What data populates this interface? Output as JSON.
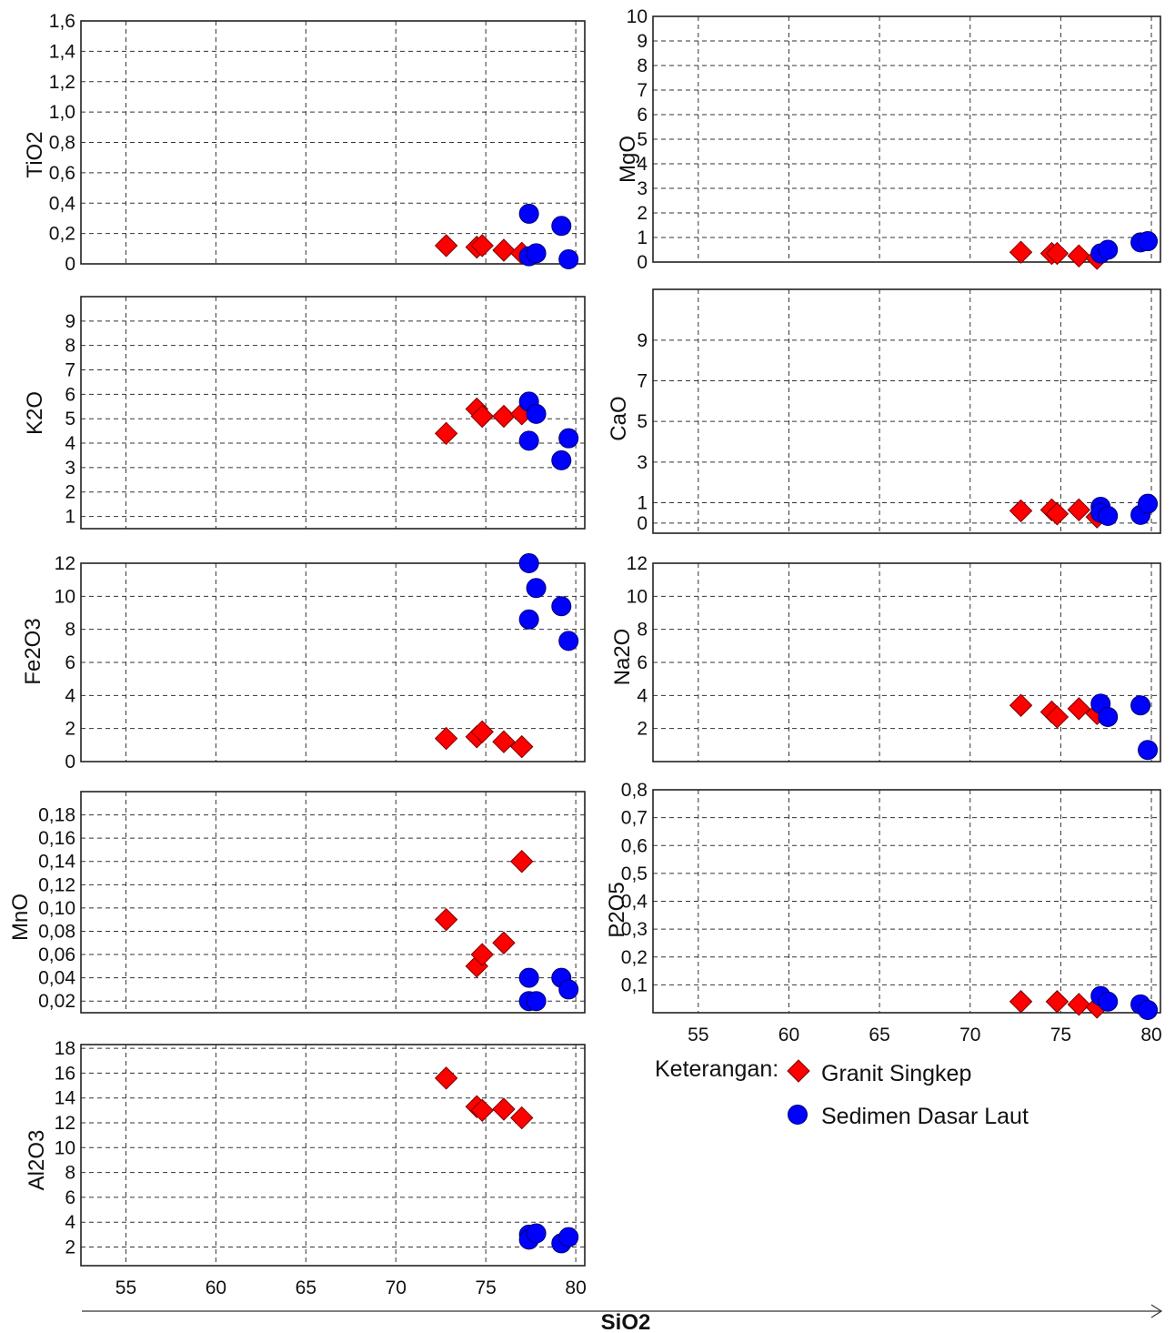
{
  "xaxis": {
    "label": "SiO2",
    "range": [
      52.5,
      80.5
    ],
    "ticks": [
      55,
      60,
      65,
      70,
      75,
      80
    ]
  },
  "legend": {
    "title": "Keterangan:",
    "items": [
      {
        "label": "Granit Singkep",
        "marker": "diamond",
        "color": "#ff0000"
      },
      {
        "label": "Sedimen Dasar Laut",
        "marker": "circle",
        "color": "#0000ff"
      }
    ]
  },
  "colors": {
    "granit": "#ff0000",
    "sedimen": "#0000ff",
    "grid": "#333333"
  },
  "chart_data": [
    {
      "type": "scatter",
      "ylabel": "TiO2",
      "ylim": [
        0,
        1.6
      ],
      "yticks": [
        {
          "v": 0,
          "t": "0"
        },
        {
          "v": 0.2,
          "t": "0,2"
        },
        {
          "v": 0.4,
          "t": "0,4"
        },
        {
          "v": 0.6,
          "t": "0,6"
        },
        {
          "v": 0.8,
          "t": "0,8"
        },
        {
          "v": 1.0,
          "t": "1,0"
        },
        {
          "v": 1.2,
          "t": "1,2"
        },
        {
          "v": 1.4,
          "t": "1,4"
        },
        {
          "v": 1.6,
          "t": "1,6"
        }
      ],
      "series": [
        {
          "name": "Granit Singkep",
          "points": [
            [
              72.8,
              0.12
            ],
            [
              74.5,
              0.11
            ],
            [
              74.8,
              0.12
            ],
            [
              76.0,
              0.09
            ],
            [
              77.0,
              0.07
            ]
          ]
        },
        {
          "name": "Sedimen Dasar Laut",
          "points": [
            [
              77.4,
              0.33
            ],
            [
              77.4,
              0.05
            ],
            [
              77.8,
              0.07
            ],
            [
              79.2,
              0.25
            ],
            [
              79.6,
              0.03
            ]
          ]
        }
      ]
    },
    {
      "type": "scatter",
      "ylabel": "MgO",
      "ylim": [
        0,
        10
      ],
      "yticks": [
        {
          "v": 0,
          "t": "0"
        },
        {
          "v": 1,
          "t": "1"
        },
        {
          "v": 2,
          "t": "2"
        },
        {
          "v": 3,
          "t": "3"
        },
        {
          "v": 4,
          "t": "4"
        },
        {
          "v": 5,
          "t": "5"
        },
        {
          "v": 6,
          "t": "6"
        },
        {
          "v": 7,
          "t": "7"
        },
        {
          "v": 8,
          "t": "8"
        },
        {
          "v": 9,
          "t": "9"
        },
        {
          "v": 10,
          "t": "10"
        }
      ],
      "series": [
        {
          "name": "Granit Singkep",
          "points": [
            [
              72.8,
              0.4
            ],
            [
              74.5,
              0.35
            ],
            [
              74.8,
              0.35
            ],
            [
              76.0,
              0.25
            ],
            [
              77.0,
              0.15
            ]
          ]
        },
        {
          "name": "Sedimen Dasar Laut",
          "points": [
            [
              77.2,
              0.35
            ],
            [
              77.6,
              0.5
            ],
            [
              79.4,
              0.8
            ],
            [
              79.8,
              0.85
            ]
          ]
        }
      ]
    },
    {
      "type": "scatter",
      "ylabel": "K2O",
      "ylim": [
        0.5,
        10
      ],
      "yticks": [
        {
          "v": 1,
          "t": "1"
        },
        {
          "v": 2,
          "t": "2"
        },
        {
          "v": 3,
          "t": "3"
        },
        {
          "v": 4,
          "t": "4"
        },
        {
          "v": 5,
          "t": "5"
        },
        {
          "v": 6,
          "t": "6"
        },
        {
          "v": 7,
          "t": "7"
        },
        {
          "v": 8,
          "t": "8"
        },
        {
          "v": 9,
          "t": "9"
        }
      ],
      "series": [
        {
          "name": "Granit Singkep",
          "points": [
            [
              72.8,
              4.4
            ],
            [
              74.5,
              5.4
            ],
            [
              74.8,
              5.1
            ],
            [
              76.0,
              5.1
            ],
            [
              77.0,
              5.2
            ]
          ]
        },
        {
          "name": "Sedimen Dasar Laut",
          "points": [
            [
              77.4,
              5.7
            ],
            [
              77.8,
              5.2
            ],
            [
              77.4,
              4.1
            ],
            [
              79.2,
              3.3
            ],
            [
              79.6,
              4.2
            ]
          ]
        }
      ]
    },
    {
      "type": "scatter",
      "ylabel": "CaO",
      "ylim": [
        -0.5,
        11.5
      ],
      "yticks": [
        {
          "v": 0,
          "t": "0"
        },
        {
          "v": 1,
          "t": "1"
        },
        {
          "v": 3,
          "t": "3"
        },
        {
          "v": 5,
          "t": "5"
        },
        {
          "v": 7,
          "t": "7"
        },
        {
          "v": 9,
          "t": "9"
        }
      ],
      "series": [
        {
          "name": "Granit Singkep",
          "points": [
            [
              72.8,
              0.6
            ],
            [
              74.5,
              0.65
            ],
            [
              74.8,
              0.45
            ],
            [
              76.0,
              0.65
            ],
            [
              77.0,
              0.3
            ]
          ]
        },
        {
          "name": "Sedimen Dasar Laut",
          "points": [
            [
              77.2,
              0.8
            ],
            [
              77.2,
              0.5
            ],
            [
              77.6,
              0.35
            ],
            [
              79.4,
              0.4
            ],
            [
              79.8,
              0.95
            ]
          ]
        }
      ]
    },
    {
      "type": "scatter",
      "ylabel": "Fe2O3",
      "ylim": [
        0,
        12
      ],
      "yticks": [
        {
          "v": 0,
          "t": "0"
        },
        {
          "v": 2,
          "t": "2"
        },
        {
          "v": 4,
          "t": "4"
        },
        {
          "v": 6,
          "t": "6"
        },
        {
          "v": 8,
          "t": "8"
        },
        {
          "v": 10,
          "t": "10"
        },
        {
          "v": 12,
          "t": "12"
        }
      ],
      "series": [
        {
          "name": "Granit Singkep",
          "points": [
            [
              72.8,
              1.4
            ],
            [
              74.5,
              1.5
            ],
            [
              74.8,
              1.8
            ],
            [
              76.0,
              1.2
            ],
            [
              77.0,
              0.9
            ]
          ]
        },
        {
          "name": "Sedimen Dasar Laut",
          "points": [
            [
              77.4,
              12.0
            ],
            [
              77.8,
              10.5
            ],
            [
              77.4,
              8.6
            ],
            [
              79.2,
              9.4
            ],
            [
              79.6,
              7.3
            ]
          ]
        }
      ]
    },
    {
      "type": "scatter",
      "ylabel": "Na2O",
      "ylim": [
        0,
        12
      ],
      "yticks": [
        {
          "v": 2,
          "t": "2"
        },
        {
          "v": 4,
          "t": "4"
        },
        {
          "v": 6,
          "t": "6"
        },
        {
          "v": 8,
          "t": "8"
        },
        {
          "v": 10,
          "t": "10"
        },
        {
          "v": 12,
          "t": "12"
        }
      ],
      "series": [
        {
          "name": "Granit Singkep",
          "points": [
            [
              72.8,
              3.4
            ],
            [
              74.5,
              3.0
            ],
            [
              74.8,
              2.7
            ],
            [
              76.0,
              3.2
            ],
            [
              77.0,
              2.9
            ]
          ]
        },
        {
          "name": "Sedimen Dasar Laut",
          "points": [
            [
              77.2,
              3.5
            ],
            [
              77.6,
              2.7
            ],
            [
              79.4,
              3.4
            ],
            [
              79.8,
              0.7
            ]
          ]
        }
      ]
    },
    {
      "type": "scatter",
      "ylabel": "MnO",
      "ylim": [
        0.01,
        0.2
      ],
      "yticks": [
        {
          "v": 0.02,
          "t": "0,02"
        },
        {
          "v": 0.04,
          "t": "0,04"
        },
        {
          "v": 0.06,
          "t": "0,06"
        },
        {
          "v": 0.08,
          "t": "0,08"
        },
        {
          "v": 0.1,
          "t": "0,10"
        },
        {
          "v": 0.12,
          "t": "0,12"
        },
        {
          "v": 0.14,
          "t": "0,14"
        },
        {
          "v": 0.16,
          "t": "0,16"
        },
        {
          "v": 0.18,
          "t": "0,18"
        }
      ],
      "series": [
        {
          "name": "Granit Singkep",
          "points": [
            [
              72.8,
              0.09
            ],
            [
              74.5,
              0.05
            ],
            [
              74.8,
              0.06
            ],
            [
              76.0,
              0.07
            ],
            [
              77.0,
              0.14
            ]
          ]
        },
        {
          "name": "Sedimen Dasar Laut",
          "points": [
            [
              77.4,
              0.04
            ],
            [
              77.4,
              0.02
            ],
            [
              77.8,
              0.02
            ],
            [
              79.2,
              0.04
            ],
            [
              79.6,
              0.03
            ]
          ]
        }
      ]
    },
    {
      "type": "scatter",
      "ylabel": "P2O5",
      "ylim": [
        0,
        0.8
      ],
      "yticks": [
        {
          "v": 0.1,
          "t": "0,1"
        },
        {
          "v": 0.2,
          "t": "0,2"
        },
        {
          "v": 0.3,
          "t": "0,3"
        },
        {
          "v": 0.4,
          "t": "0,4"
        },
        {
          "v": 0.5,
          "t": "0,5"
        },
        {
          "v": 0.6,
          "t": "0,6"
        },
        {
          "v": 0.7,
          "t": "0,7"
        },
        {
          "v": 0.8,
          "t": "0,8"
        }
      ],
      "series": [
        {
          "name": "Granit Singkep",
          "points": [
            [
              72.8,
              0.04
            ],
            [
              74.8,
              0.04
            ],
            [
              76.0,
              0.03
            ],
            [
              77.0,
              0.02
            ]
          ]
        },
        {
          "name": "Sedimen Dasar Laut",
          "points": [
            [
              77.2,
              0.06
            ],
            [
              77.6,
              0.04
            ],
            [
              79.4,
              0.03
            ],
            [
              79.8,
              0.01
            ]
          ]
        }
      ]
    },
    {
      "type": "scatter",
      "ylabel": "Al2O3",
      "ylim": [
        0.5,
        18.3
      ],
      "yticks": [
        {
          "v": 2,
          "t": "2"
        },
        {
          "v": 4,
          "t": "4"
        },
        {
          "v": 6,
          "t": "6"
        },
        {
          "v": 8,
          "t": "8"
        },
        {
          "v": 10,
          "t": "10"
        },
        {
          "v": 12,
          "t": "12"
        },
        {
          "v": 14,
          "t": "14"
        },
        {
          "v": 16,
          "t": "16"
        },
        {
          "v": 18,
          "t": "18"
        }
      ],
      "series": [
        {
          "name": "Granit Singkep",
          "points": [
            [
              72.8,
              15.6
            ],
            [
              74.5,
              13.3
            ],
            [
              74.8,
              13.0
            ],
            [
              76.0,
              13.1
            ],
            [
              77.0,
              12.4
            ]
          ]
        },
        {
          "name": "Sedimen Dasar Laut",
          "points": [
            [
              77.4,
              3.0
            ],
            [
              77.4,
              2.6
            ],
            [
              77.8,
              3.1
            ],
            [
              79.2,
              2.3
            ],
            [
              79.6,
              2.8
            ]
          ]
        }
      ]
    }
  ]
}
